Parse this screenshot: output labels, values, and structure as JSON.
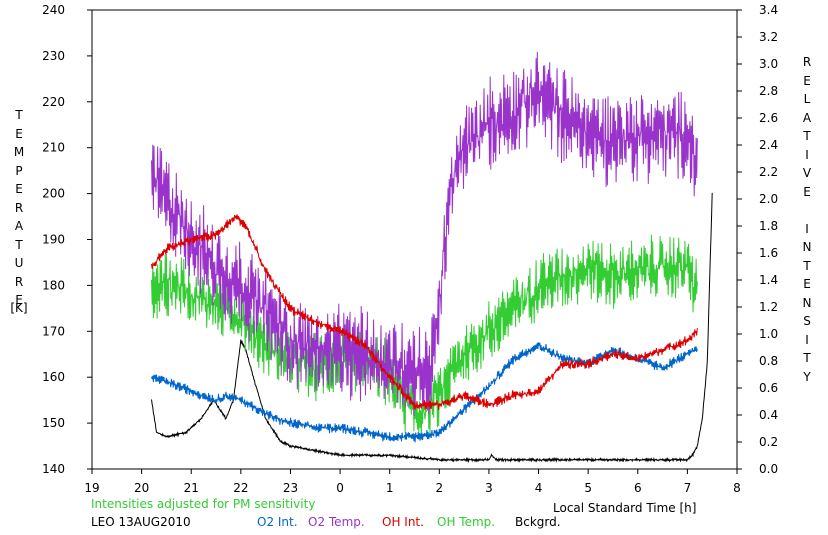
{
  "chart_data": {
    "type": "line",
    "xlabel": "Local Standard Time [h]",
    "ylabel_left": "TEMPERATURE",
    "ylabel_left_unit": "[K]",
    "ylabel_right": "RELATIVE INTENSITY",
    "x_tick_labels": [
      "19",
      "20",
      "21",
      "22",
      "23",
      "0",
      "1",
      "2",
      "3",
      "4",
      "5",
      "6",
      "7",
      "8"
    ],
    "xlim": [
      19,
      32
    ],
    "ylim_left": [
      140,
      240
    ],
    "ylim_right": [
      0.0,
      3.4
    ],
    "y_left_ticks": [
      "140",
      "150",
      "160",
      "170",
      "180",
      "190",
      "200",
      "210",
      "220",
      "230",
      "240"
    ],
    "y_right_ticks": [
      "0.0",
      "0.2",
      "0.4",
      "0.6",
      "0.8",
      "1.0",
      "1.2",
      "1.4",
      "1.6",
      "1.8",
      "2.0",
      "2.2",
      "2.4",
      "2.6",
      "2.8",
      "3.0",
      "3.2",
      "3.4"
    ],
    "note": "Intensities adjusted for PM sensitivity",
    "station": "LEO 13AUG2010",
    "series": [
      {
        "name": "O2 Int.",
        "axis": "left",
        "color": "#0066cc",
        "noise": 0.8,
        "x": [
          20.2,
          20.5,
          21.0,
          21.5,
          21.7,
          22.0,
          22.7,
          23.0,
          23.5,
          24.0,
          24.5,
          25.0,
          25.5,
          26.0,
          26.5,
          27.0,
          27.5,
          28.0,
          28.5,
          29.0,
          29.5,
          30.0,
          30.5,
          31.0,
          31.2
        ],
        "y": [
          160,
          159,
          157,
          155,
          156,
          155,
          151,
          150,
          149,
          149,
          148,
          147,
          147,
          148,
          153,
          158,
          164,
          167,
          164,
          163,
          166,
          164,
          162,
          165,
          166
        ]
      },
      {
        "name": "O2 Temp.",
        "axis": "left",
        "color": "#9933cc",
        "noise": 7,
        "x": [
          20.2,
          20.4,
          20.6,
          21.0,
          21.3,
          21.6,
          22.0,
          22.5,
          23.0,
          23.5,
          24.0,
          24.5,
          25.0,
          25.5,
          25.8,
          26.0,
          26.2,
          26.5,
          27.0,
          27.5,
          28.0,
          28.5,
          29.0,
          29.5,
          30.0,
          30.5,
          31.0,
          31.2
        ],
        "y": [
          205,
          200,
          197,
          191,
          186,
          183,
          180,
          174,
          168,
          166,
          165,
          165,
          163,
          162,
          160,
          175,
          200,
          210,
          215,
          218,
          222,
          217,
          213,
          212,
          213,
          213,
          213,
          205
        ]
      },
      {
        "name": "OH Int.",
        "axis": "left",
        "color": "#dd0000",
        "noise": 0.8,
        "x": [
          20.2,
          20.5,
          21.0,
          21.5,
          21.9,
          22.1,
          22.5,
          23.0,
          23.5,
          24.0,
          24.5,
          25.0,
          25.5,
          26.0,
          26.5,
          27.0,
          27.5,
          28.0,
          28.5,
          29.0,
          29.5,
          30.0,
          30.5,
          31.0,
          31.2
        ],
        "y": [
          184,
          188,
          190,
          191,
          195,
          193,
          183,
          175,
          172,
          170,
          167,
          160,
          154,
          154,
          156,
          154,
          156,
          157,
          163,
          163,
          165,
          164,
          166,
          168,
          170
        ]
      },
      {
        "name": "OH Temp.",
        "axis": "left",
        "color": "#33cc33",
        "noise": 5,
        "x": [
          20.2,
          20.4,
          20.8,
          21.2,
          21.6,
          22.0,
          22.5,
          23.0,
          23.5,
          24.0,
          24.5,
          25.0,
          25.3,
          25.6,
          26.0,
          26.3,
          26.5,
          27.0,
          27.5,
          28.0,
          28.5,
          29.0,
          29.5,
          30.0,
          30.5,
          31.0,
          31.2
        ],
        "y": [
          178,
          180,
          180,
          177,
          176,
          173,
          167,
          164,
          162,
          164,
          163,
          161,
          155,
          152,
          156,
          162,
          165,
          170,
          175,
          180,
          182,
          184,
          182,
          183,
          184,
          184,
          178
        ]
      },
      {
        "name": "Bckgrd.",
        "axis": "left",
        "color": "#000000",
        "noise": 0.2,
        "x": [
          20.2,
          20.3,
          20.5,
          20.9,
          21.2,
          21.45,
          21.7,
          21.85,
          22.0,
          22.1,
          22.25,
          22.5,
          22.8,
          23.0,
          23.5,
          24.0,
          25.0,
          26.0,
          27.0,
          27.05,
          27.15,
          27.5,
          28.0,
          29.0,
          30.0,
          31.0,
          31.1,
          31.2,
          31.3,
          31.4,
          31.5
        ],
        "y": [
          155,
          148,
          147,
          148,
          151,
          155,
          151,
          155,
          168,
          166,
          160,
          151,
          146,
          145,
          144,
          143,
          143,
          142,
          142,
          143,
          142,
          142,
          142,
          142,
          142,
          142,
          143,
          145,
          151,
          163,
          200
        ]
      }
    ]
  },
  "legend": {
    "note": "Intensities adjusted for PM sensitivity",
    "station": "LEO 13AUG2010",
    "o2_int": "O2 Int.",
    "o2_temp": "O2 Temp.",
    "oh_int": "OH Int.",
    "oh_temp": "OH Temp.",
    "bckgrd": "Bckgrd."
  },
  "colors": {
    "o2_int": "#0066cc",
    "o2_temp": "#9933cc",
    "oh_int": "#dd0000",
    "oh_temp": "#33cc33",
    "bckgrd": "#000000",
    "note": "#33cc33"
  }
}
